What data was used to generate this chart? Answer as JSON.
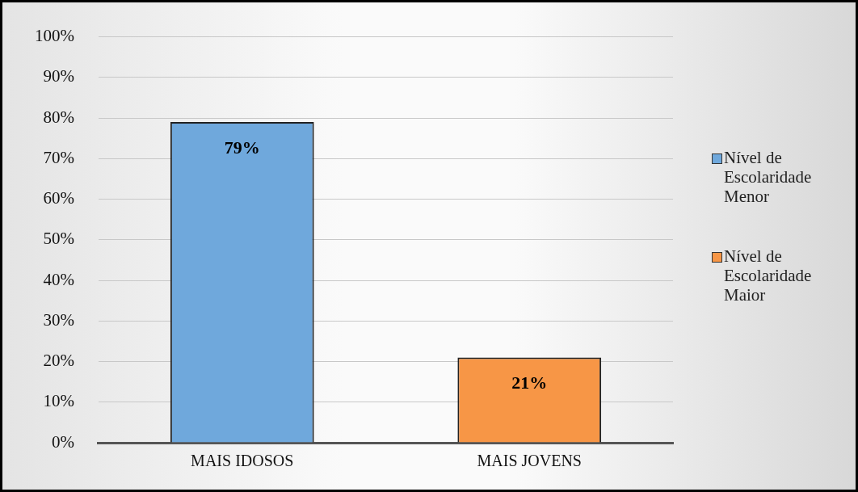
{
  "chart_data": {
    "type": "bar",
    "categories": [
      "MAIS IDOSOS",
      "MAIS JOVENS"
    ],
    "series": [
      {
        "name": "Nível de Escolaridade Menor",
        "color": "#6fa8dc",
        "values": [
          79,
          null
        ]
      },
      {
        "name": "Nível de Escolaridade Maior",
        "color": "#f79646",
        "values": [
          null,
          21
        ]
      }
    ],
    "ylim": [
      0,
      100
    ],
    "yticks": [
      {
        "value": 0,
        "label": "0%"
      },
      {
        "value": 10,
        "label": "10%"
      },
      {
        "value": 20,
        "label": "20%"
      },
      {
        "value": 30,
        "label": "30%"
      },
      {
        "value": 40,
        "label": "40%"
      },
      {
        "value": 50,
        "label": "50%"
      },
      {
        "value": 60,
        "label": "60%"
      },
      {
        "value": 70,
        "label": "70%"
      },
      {
        "value": 80,
        "label": "80%"
      },
      {
        "value": 90,
        "label": "90%"
      },
      {
        "value": 100,
        "label": "100%"
      }
    ],
    "value_labels": [
      "79%",
      "21%"
    ],
    "grid": "y",
    "legend": "right"
  }
}
